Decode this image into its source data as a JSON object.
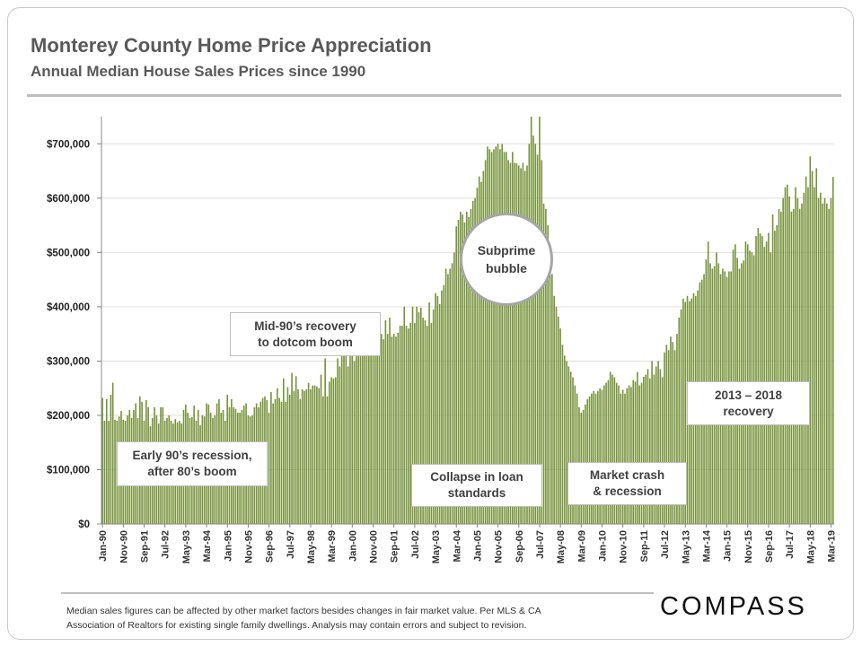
{
  "header": {
    "title": "Monterey County Home Price Appreciation",
    "subtitle": "Annual Median House Sales Prices since 1990"
  },
  "chart_data": {
    "type": "bar",
    "title": "",
    "xlabel": "",
    "ylabel": "",
    "ylim": [
      0,
      750000
    ],
    "grid": true,
    "bar_color": "#77933C",
    "y_ticks": [
      0,
      100000,
      200000,
      300000,
      400000,
      500000,
      600000,
      700000
    ],
    "y_tick_labels": [
      "$0",
      "$100,000",
      "$200,000",
      "$300,000",
      "$400,000",
      "$500,000",
      "$600,000",
      "$700,000"
    ],
    "x_tick_labels": [
      "Jan-90",
      "Nov-90",
      "Sep-91",
      "Jul-92",
      "May-93",
      "Mar-94",
      "Jan-95",
      "Nov-95",
      "Sep-96",
      "Jul-97",
      "May-98",
      "Mar-99",
      "Jan-00",
      "Nov-00",
      "Sep-01",
      "Jul-02",
      "May-03",
      "Mar-04",
      "Jan-05",
      "Nov-05",
      "Sep-06",
      "Jul-07",
      "May-08",
      "Mar-09",
      "Jan-10",
      "Nov-10",
      "Sep-11",
      "Jul-12",
      "May-13",
      "Mar-14",
      "Jan-15",
      "Nov-15",
      "Sep-16",
      "Jul-17",
      "May-18",
      "Mar-19"
    ],
    "x_tick_every_months": 10,
    "frequency": "monthly",
    "values": [
      232000,
      190000,
      230000,
      190000,
      238000,
      260000,
      192000,
      190000,
      198000,
      208000,
      192000,
      190000,
      200000,
      210000,
      195000,
      210000,
      222000,
      195000,
      235000,
      225000,
      190000,
      228000,
      215000,
      180000,
      195000,
      215000,
      200000,
      185000,
      215000,
      215000,
      190000,
      195000,
      200000,
      190000,
      185000,
      193000,
      187000,
      190000,
      185000,
      210000,
      220000,
      205000,
      195000,
      197000,
      218000,
      190000,
      210000,
      182000,
      200000,
      198000,
      222000,
      220000,
      205000,
      195000,
      200000,
      222000,
      230000,
      205000,
      210000,
      190000,
      238000,
      215000,
      230000,
      215000,
      212000,
      205000,
      205000,
      210000,
      218000,
      222000,
      200000,
      198000,
      200000,
      215000,
      222000,
      215000,
      225000,
      232000,
      235000,
      228000,
      205000,
      243000,
      222000,
      230000,
      250000,
      232000,
      225000,
      268000,
      225000,
      252000,
      238000,
      278000,
      245000,
      272000,
      248000,
      230000,
      248000,
      245000,
      248000,
      260000,
      248000,
      255000,
      255000,
      253000,
      250000,
      275000,
      235000,
      305000,
      235000,
      262000,
      270000,
      268000,
      270000,
      305000,
      290000,
      315000,
      310000,
      330000,
      290000,
      310000,
      315000,
      300000,
      330000,
      310000,
      320000,
      330000,
      315000,
      320000,
      335000,
      320000,
      325000,
      335000,
      330000,
      340000,
      350000,
      340000,
      375000,
      350000,
      380000,
      345000,
      350000,
      345000,
      352000,
      365000,
      365000,
      400000,
      365000,
      360000,
      370000,
      400000,
      370000,
      400000,
      390000,
      398000,
      380000,
      375000,
      365000,
      408000,
      370000,
      395000,
      425000,
      420000,
      405000,
      430000,
      440000,
      470000,
      460000,
      470000,
      480000,
      500000,
      548000,
      560000,
      575000,
      570000,
      555000,
      575000,
      565000,
      580000,
      595000,
      600000,
      619000,
      640000,
      630000,
      650000,
      670000,
      695000,
      690000,
      685000,
      690000,
      695000,
      700000,
      690000,
      700000,
      685000,
      685000,
      670000,
      665000,
      685000,
      665000,
      664000,
      660000,
      655000,
      665000,
      650000,
      660000,
      700000,
      750000,
      715000,
      700000,
      680000,
      750000,
      670000,
      590000,
      580000,
      550000,
      480000,
      460000,
      420000,
      400000,
      382000,
      360000,
      330000,
      310000,
      300000,
      290000,
      280000,
      270000,
      255000,
      240000,
      215000,
      205000,
      210000,
      220000,
      230000,
      235000,
      240000,
      245000,
      240000,
      245000,
      250000,
      247000,
      255000,
      260000,
      265000,
      280000,
      275000,
      270000,
      260000,
      255000,
      240000,
      247000,
      240000,
      250000,
      255000,
      252000,
      265000,
      262000,
      280000,
      255000,
      260000,
      271000,
      275000,
      285000,
      268000,
      300000,
      275000,
      290000,
      300000,
      285000,
      270000,
      316000,
      330000,
      320000,
      345000,
      335000,
      320000,
      350000,
      380000,
      395000,
      415000,
      409000,
      420000,
      410000,
      415000,
      425000,
      420000,
      430000,
      445000,
      450000,
      460000,
      487000,
      520000,
      480000,
      470000,
      475000,
      500000,
      480000,
      460000,
      470000,
      465000,
      455000,
      465000,
      465000,
      505000,
      515000,
      490000,
      470000,
      480000,
      485000,
      520000,
      515000,
      503000,
      500000,
      495000,
      530000,
      545000,
      535000,
      530000,
      510000,
      520000,
      536000,
      500000,
      570000,
      540000,
      550000,
      580000,
      575000,
      600000,
      620000,
      625000,
      603000,
      575000,
      580000,
      620000,
      600000,
      580000,
      590000,
      610000,
      640000,
      620000,
      677000,
      650000,
      620000,
      655000,
      600000,
      610000,
      590000,
      600000,
      590000,
      580000,
      600000,
      639000
    ]
  },
  "annotations": {
    "early90s": [
      "Early 90’s recession,",
      "after 80’s boom"
    ],
    "mid90s": [
      "Mid-90’s recovery",
      "to dotcom boom"
    ],
    "subprime": [
      "Subprime",
      "bubble"
    ],
    "collapse": [
      "Collapse in loan",
      "standards"
    ],
    "crash": [
      "Market crash",
      "& recession"
    ],
    "recovery": [
      "2013 – 2018",
      "recovery"
    ]
  },
  "footer": {
    "note_line1": "Median sales figures can be affected by other market factors besides changes in fair market value. Per MLS & CA",
    "note_line2": "Association of Realtors for existing single family dwellings. Analysis  may contain errors and subject to revision.",
    "logo": "COMPASS"
  }
}
